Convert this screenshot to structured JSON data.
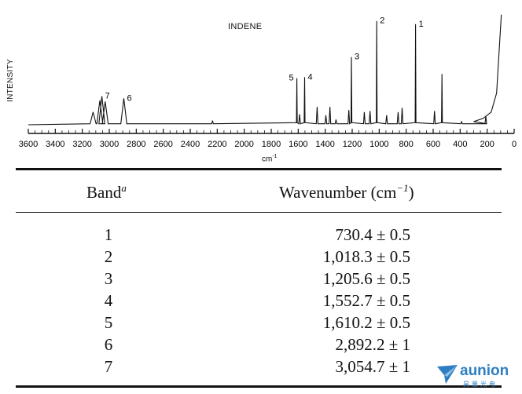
{
  "chart_data": {
    "type": "line",
    "title": "INDENE",
    "ylabel": "INTENSITY",
    "xlabel": "cm",
    "xlabel_superscript": "-1",
    "xlim": [
      3600,
      0
    ],
    "x_ticks": [
      "3600",
      "3400",
      "3200",
      "3000",
      "2800",
      "2600",
      "2400",
      "2200",
      "2000",
      "1800",
      "1600",
      "1400",
      "1200",
      "1000",
      "800",
      "600",
      "400",
      "200",
      "0"
    ],
    "peaks": [
      {
        "x": 3120,
        "y": 0.12
      },
      {
        "x": 3070,
        "y": 0.23
      },
      {
        "x": 3054.7,
        "y": 0.27,
        "label": "7"
      },
      {
        "x": 3030,
        "y": 0.22
      },
      {
        "x": 2892.2,
        "y": 0.25,
        "label": "6"
      },
      {
        "x": 2235,
        "y": 0.04
      },
      {
        "x": 1610.2,
        "y": 0.44,
        "label": "5"
      },
      {
        "x": 1590,
        "y": 0.1
      },
      {
        "x": 1552.7,
        "y": 0.45,
        "label": "4"
      },
      {
        "x": 1460,
        "y": 0.17
      },
      {
        "x": 1395,
        "y": 0.09
      },
      {
        "x": 1365,
        "y": 0.17
      },
      {
        "x": 1320,
        "y": 0.05
      },
      {
        "x": 1225,
        "y": 0.14
      },
      {
        "x": 1205.6,
        "y": 0.64,
        "label": "3"
      },
      {
        "x": 1110,
        "y": 0.12
      },
      {
        "x": 1068,
        "y": 0.13
      },
      {
        "x": 1018.3,
        "y": 0.98,
        "label": "2"
      },
      {
        "x": 945,
        "y": 0.09
      },
      {
        "x": 860,
        "y": 0.12
      },
      {
        "x": 830,
        "y": 0.16
      },
      {
        "x": 730.4,
        "y": 0.95,
        "label": "1"
      },
      {
        "x": 590,
        "y": 0.13
      },
      {
        "x": 535,
        "y": 0.48
      },
      {
        "x": 390,
        "y": 0.03
      },
      {
        "x": 210,
        "y": 0.08
      }
    ],
    "rise": {
      "start": 300,
      "end": 95,
      "y": 1.04
    }
  },
  "table": {
    "header_band": "Band",
    "header_band_sup": "a",
    "header_wavenumber": "Wavenumber (cm",
    "header_wavenumber_sup": "−1",
    "header_wavenumber_close": ")",
    "rows": [
      {
        "band": "1",
        "wavenumber": "730.4 ± 0.5"
      },
      {
        "band": "2",
        "wavenumber": "1,018.3 ± 0.5"
      },
      {
        "band": "3",
        "wavenumber": "1,205.6 ± 0.5"
      },
      {
        "band": "4",
        "wavenumber": "1,552.7 ± 0.5"
      },
      {
        "band": "5",
        "wavenumber": "1,610.2 ± 0.5"
      },
      {
        "band": "6",
        "wavenumber": "2,892.2 ± 1"
      },
      {
        "band": "7",
        "wavenumber": "3,054.7 ± 1"
      }
    ]
  },
  "watermark": {
    "text": "aunion",
    "subtext": "昊量光电",
    "color": "#2f7ec1"
  }
}
